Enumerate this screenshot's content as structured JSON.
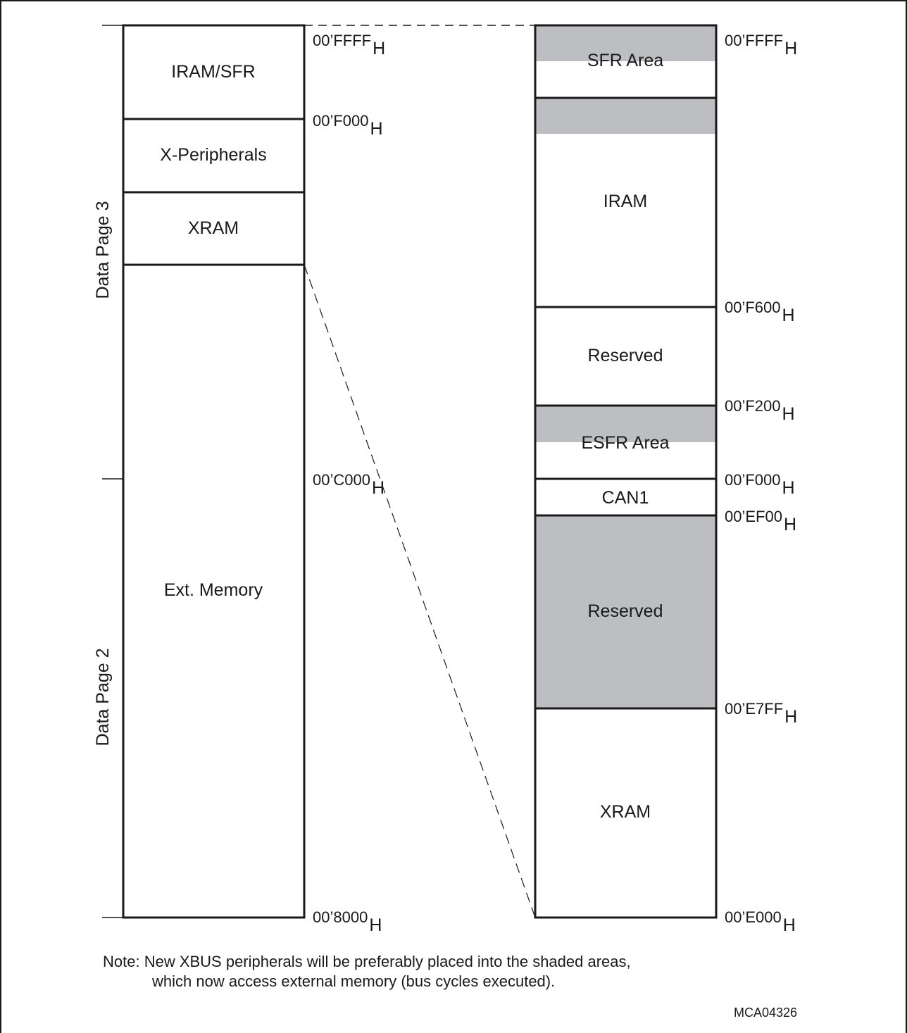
{
  "page_labels": {
    "upper": "Data Page 3",
    "lower": "Data Page 2"
  },
  "left_map": {
    "blocks": [
      {
        "label": "IRAM/SFR",
        "shaded": false
      },
      {
        "label": "X-Peripherals",
        "shaded": false
      },
      {
        "label": "XRAM",
        "shaded": false
      },
      {
        "label": "Ext. Memory",
        "shaded": false
      }
    ],
    "addresses": [
      {
        "value": "00’FFFF",
        "suffix": "H"
      },
      {
        "value": "00’F000",
        "suffix": "H"
      },
      {
        "value": "00’C000",
        "suffix": "H"
      },
      {
        "value": "00’8000",
        "suffix": "H"
      }
    ]
  },
  "right_map": {
    "blocks": [
      {
        "label": "SFR Area",
        "shaded_top": true
      },
      {
        "label": "IRAM",
        "shaded_top": true
      },
      {
        "label": "Reserved",
        "shaded_top": false
      },
      {
        "label": "ESFR Area",
        "shaded_top": true
      },
      {
        "label": "CAN1",
        "shaded_top": false
      },
      {
        "label": "Reserved",
        "shaded": true
      },
      {
        "label": "XRAM",
        "shaded": false
      }
    ],
    "addresses": [
      {
        "value": "00’FFFF",
        "suffix": "H"
      },
      {
        "value": "00’F600",
        "suffix": "H"
      },
      {
        "value": "00’F200",
        "suffix": "H"
      },
      {
        "value": "00’F000",
        "suffix": "H"
      },
      {
        "value": "00’EF00",
        "suffix": "H"
      },
      {
        "value": "00’E7FF",
        "suffix": "H"
      },
      {
        "value": "00’E000",
        "suffix": "H"
      }
    ]
  },
  "colors": {
    "shade": "#bdbec1",
    "line": "#1a1a1a"
  },
  "note": {
    "line1": "Note: New XBUS peripherals will be preferably placed into the shaded areas,",
    "line2": "which now access external memory (bus cycles executed)."
  },
  "figure_id": "MCA04326"
}
